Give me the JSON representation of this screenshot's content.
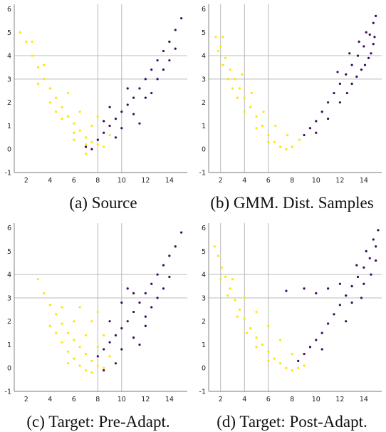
{
  "chart_data": [
    {
      "type": "scatter",
      "title": "(a) Source",
      "xlim": [
        1,
        15.5
      ],
      "ylim": [
        -1,
        6.2
      ],
      "xticks": [
        2,
        4,
        6,
        8,
        10,
        12,
        14
      ],
      "yticks": [
        -1,
        0,
        1,
        2,
        3,
        4,
        5,
        6
      ],
      "x_grid": [
        8,
        10
      ],
      "y_grid": [
        3,
        4
      ],
      "series": [
        {
          "class": "yellow",
          "color": "#FFE600",
          "points": [
            [
              1.5,
              5.0
            ],
            [
              2.0,
              4.6
            ],
            [
              2.5,
              4.0
            ],
            [
              3.0,
              3.5
            ],
            [
              3.5,
              3.0
            ],
            [
              4.0,
              2.6
            ],
            [
              4.5,
              2.2
            ],
            [
              5.0,
              1.8
            ],
            [
              5.5,
              1.4
            ],
            [
              6.0,
              1.1
            ],
            [
              6.5,
              0.8
            ],
            [
              7.0,
              0.5
            ],
            [
              7.5,
              0.3
            ],
            [
              8.0,
              0.2
            ],
            [
              8.5,
              0.1
            ],
            [
              3.0,
              2.8
            ],
            [
              4.0,
              2.0
            ],
            [
              5.0,
              1.3
            ],
            [
              6.0,
              0.7
            ],
            [
              7.0,
              0.2
            ],
            [
              5.5,
              2.4
            ],
            [
              6.5,
              1.6
            ],
            [
              7.5,
              1.0
            ],
            [
              8.0,
              1.4
            ],
            [
              9.0,
              0.6
            ],
            [
              3.5,
              3.6
            ],
            [
              2.5,
              4.6
            ],
            [
              4.5,
              1.6
            ],
            [
              6.0,
              0.4
            ],
            [
              7.0,
              -0.2
            ]
          ]
        },
        {
          "class": "purple",
          "color": "#3B0A5E",
          "points": [
            [
              7.0,
              0.1
            ],
            [
              7.5,
              0.0
            ],
            [
              8.0,
              0.4
            ],
            [
              8.5,
              0.7
            ],
            [
              9.0,
              1.0
            ],
            [
              9.5,
              1.3
            ],
            [
              10.0,
              1.6
            ],
            [
              10.5,
              1.9
            ],
            [
              11.0,
              2.2
            ],
            [
              11.5,
              2.6
            ],
            [
              12.0,
              3.0
            ],
            [
              12.5,
              3.4
            ],
            [
              13.0,
              3.8
            ],
            [
              13.5,
              4.2
            ],
            [
              14.0,
              4.6
            ],
            [
              14.5,
              5.1
            ],
            [
              15.0,
              5.6
            ],
            [
              10.0,
              0.9
            ],
            [
              11.0,
              1.5
            ],
            [
              12.0,
              2.2
            ],
            [
              13.0,
              3.0
            ],
            [
              14.0,
              3.8
            ],
            [
              9.0,
              1.8
            ],
            [
              10.5,
              2.6
            ],
            [
              12.5,
              2.4
            ],
            [
              13.5,
              3.4
            ],
            [
              14.5,
              4.3
            ],
            [
              8.5,
              1.2
            ],
            [
              9.5,
              0.5
            ],
            [
              11.5,
              1.1
            ]
          ]
        }
      ]
    },
    {
      "type": "scatter",
      "title": "(b) GMM. Dist. Samples",
      "xlim": [
        1,
        15.5
      ],
      "ylim": [
        -1,
        6.2
      ],
      "xticks": [
        2,
        4,
        6,
        8,
        10,
        12,
        14
      ],
      "yticks": [
        -1,
        0,
        1,
        2,
        3,
        4,
        5,
        6
      ],
      "x_grid": [
        2,
        4,
        6
      ],
      "y_grid": [
        3,
        4
      ],
      "series": [
        {
          "class": "yellow",
          "color": "#FFE600",
          "points": [
            [
              1.6,
              4.8
            ],
            [
              2.0,
              4.4
            ],
            [
              2.4,
              3.9
            ],
            [
              2.8,
              3.4
            ],
            [
              3.2,
              3.0
            ],
            [
              3.6,
              2.6
            ],
            [
              4.0,
              2.2
            ],
            [
              4.5,
              1.8
            ],
            [
              5.0,
              1.4
            ],
            [
              5.5,
              1.0
            ],
            [
              6.0,
              0.6
            ],
            [
              6.5,
              0.3
            ],
            [
              7.0,
              0.1
            ],
            [
              7.5,
              0.0
            ],
            [
              8.0,
              0.1
            ],
            [
              2.2,
              3.6
            ],
            [
              3.0,
              2.6
            ],
            [
              4.0,
              1.6
            ],
            [
              5.0,
              0.9
            ],
            [
              6.0,
              0.3
            ],
            [
              1.8,
              4.2
            ],
            [
              2.6,
              3.0
            ],
            [
              3.4,
              2.2
            ],
            [
              4.6,
              2.4
            ],
            [
              5.6,
              1.6
            ],
            [
              6.6,
              1.0
            ],
            [
              7.6,
              0.6
            ],
            [
              8.6,
              0.4
            ],
            [
              3.8,
              3.2
            ],
            [
              2.2,
              4.8
            ]
          ]
        },
        {
          "class": "purple",
          "color": "#3B0A5E",
          "points": [
            [
              9.0,
              0.6
            ],
            [
              9.5,
              0.9
            ],
            [
              10.0,
              1.2
            ],
            [
              10.5,
              1.6
            ],
            [
              11.0,
              2.0
            ],
            [
              11.5,
              2.4
            ],
            [
              12.0,
              2.8
            ],
            [
              12.5,
              3.2
            ],
            [
              13.0,
              3.6
            ],
            [
              13.5,
              4.0
            ],
            [
              14.0,
              4.4
            ],
            [
              14.5,
              4.9
            ],
            [
              14.8,
              5.4
            ],
            [
              15.0,
              5.7
            ],
            [
              13.0,
              2.8
            ],
            [
              13.8,
              3.4
            ],
            [
              14.4,
              3.9
            ],
            [
              14.8,
              4.5
            ],
            [
              12.0,
              2.0
            ],
            [
              11.0,
              1.3
            ],
            [
              10.0,
              0.7
            ],
            [
              12.6,
              2.4
            ],
            [
              13.4,
              3.1
            ],
            [
              14.1,
              3.6
            ],
            [
              14.6,
              4.1
            ],
            [
              14.9,
              4.8
            ],
            [
              14.2,
              5.0
            ],
            [
              13.6,
              4.6
            ],
            [
              12.8,
              4.1
            ],
            [
              11.8,
              3.3
            ]
          ]
        }
      ]
    },
    {
      "type": "scatter",
      "title": "(c) Target: Pre-Adapt.",
      "xlim": [
        1,
        15.5
      ],
      "ylim": [
        -1,
        6.2
      ],
      "xticks": [
        2,
        4,
        6,
        8,
        10,
        12,
        14
      ],
      "yticks": [
        -1,
        0,
        1,
        2,
        3,
        4,
        5,
        6
      ],
      "x_grid": [
        8,
        10
      ],
      "y_grid": [
        3,
        4
      ],
      "series": [
        {
          "class": "yellow",
          "color": "#FFE600",
          "points": [
            [
              3.0,
              3.8
            ],
            [
              3.5,
              3.2
            ],
            [
              4.0,
              2.7
            ],
            [
              4.5,
              2.3
            ],
            [
              5.0,
              1.9
            ],
            [
              5.5,
              1.5
            ],
            [
              6.0,
              1.2
            ],
            [
              6.5,
              0.9
            ],
            [
              7.0,
              0.6
            ],
            [
              7.5,
              0.3
            ],
            [
              8.0,
              0.1
            ],
            [
              8.5,
              0.0
            ],
            [
              4.5,
              1.5
            ],
            [
              5.0,
              1.1
            ],
            [
              5.5,
              0.7
            ],
            [
              6.0,
              0.4
            ],
            [
              6.5,
              0.1
            ],
            [
              7.0,
              -0.1
            ],
            [
              5.0,
              2.6
            ],
            [
              6.0,
              2.0
            ],
            [
              7.0,
              1.4
            ],
            [
              8.0,
              0.9
            ],
            [
              9.0,
              0.5
            ],
            [
              6.5,
              2.6
            ],
            [
              7.5,
              2.0
            ],
            [
              8.5,
              1.4
            ],
            [
              5.5,
              0.2
            ],
            [
              7.5,
              -0.2
            ],
            [
              8.0,
              2.4
            ],
            [
              4.0,
              1.8
            ]
          ]
        },
        {
          "class": "purple",
          "color": "#3B0A5E",
          "points": [
            [
              8.0,
              0.5
            ],
            [
              8.5,
              0.8
            ],
            [
              9.0,
              1.1
            ],
            [
              9.5,
              1.4
            ],
            [
              10.0,
              1.7
            ],
            [
              10.5,
              2.0
            ],
            [
              11.0,
              2.4
            ],
            [
              11.5,
              2.8
            ],
            [
              12.0,
              3.2
            ],
            [
              12.5,
              3.6
            ],
            [
              13.0,
              4.0
            ],
            [
              13.5,
              4.4
            ],
            [
              14.0,
              4.8
            ],
            [
              14.5,
              5.2
            ],
            [
              15.0,
              5.8
            ],
            [
              9.0,
              2.0
            ],
            [
              10.0,
              2.8
            ],
            [
              11.0,
              3.2
            ],
            [
              12.0,
              2.2
            ],
            [
              13.0,
              3.0
            ],
            [
              10.0,
              0.8
            ],
            [
              11.0,
              1.3
            ],
            [
              12.0,
              1.8
            ],
            [
              9.5,
              0.2
            ],
            [
              8.5,
              -0.1
            ],
            [
              11.5,
              1.0
            ],
            [
              12.5,
              2.6
            ],
            [
              13.5,
              3.4
            ],
            [
              14.0,
              3.9
            ],
            [
              10.5,
              3.4
            ]
          ]
        }
      ]
    },
    {
      "type": "scatter",
      "title": "(d) Target: Post-Adapt.",
      "xlim": [
        1,
        15.5
      ],
      "ylim": [
        -1,
        6.2
      ],
      "xticks": [
        2,
        4,
        6,
        8,
        10,
        12,
        14
      ],
      "yticks": [
        -1,
        0,
        1,
        2,
        3,
        4,
        5,
        6
      ],
      "x_grid": [
        2,
        4,
        6
      ],
      "y_grid": [
        3,
        4
      ],
      "series": [
        {
          "class": "yellow",
          "color": "#FFE600",
          "points": [
            [
              1.5,
              5.2
            ],
            [
              1.8,
              4.8
            ],
            [
              2.1,
              4.3
            ],
            [
              2.4,
              3.9
            ],
            [
              2.8,
              3.4
            ],
            [
              3.2,
              2.9
            ],
            [
              3.6,
              2.5
            ],
            [
              4.0,
              2.1
            ],
            [
              4.5,
              1.7
            ],
            [
              5.0,
              1.3
            ],
            [
              5.5,
              1.0
            ],
            [
              6.0,
              0.7
            ],
            [
              6.5,
              0.4
            ],
            [
              7.0,
              0.2
            ],
            [
              7.5,
              0.0
            ],
            [
              8.0,
              -0.1
            ],
            [
              8.5,
              0.0
            ],
            [
              9.0,
              0.1
            ],
            [
              2.0,
              3.8
            ],
            [
              2.6,
              3.1
            ],
            [
              3.4,
              2.2
            ],
            [
              4.2,
              1.5
            ],
            [
              5.0,
              0.9
            ],
            [
              6.0,
              0.3
            ],
            [
              3.0,
              3.8
            ],
            [
              4.0,
              3.0
            ],
            [
              5.0,
              2.4
            ],
            [
              6.0,
              1.8
            ],
            [
              7.0,
              1.2
            ],
            [
              8.0,
              0.6
            ]
          ]
        },
        {
          "class": "purple",
          "color": "#3B0A5E",
          "points": [
            [
              8.5,
              0.3
            ],
            [
              9.0,
              0.6
            ],
            [
              9.5,
              0.9
            ],
            [
              10.0,
              1.2
            ],
            [
              10.5,
              1.5
            ],
            [
              11.0,
              1.9
            ],
            [
              11.5,
              2.3
            ],
            [
              12.0,
              2.7
            ],
            [
              12.5,
              3.1
            ],
            [
              13.0,
              3.5
            ],
            [
              13.5,
              3.9
            ],
            [
              14.0,
              4.3
            ],
            [
              14.5,
              4.7
            ],
            [
              15.0,
              5.2
            ],
            [
              15.2,
              5.9
            ],
            [
              11.0,
              3.4
            ],
            [
              12.0,
              3.6
            ],
            [
              13.0,
              2.8
            ],
            [
              14.0,
              3.6
            ],
            [
              14.6,
              4.0
            ],
            [
              15.0,
              4.6
            ],
            [
              14.2,
              5.0
            ],
            [
              13.4,
              4.4
            ],
            [
              10.0,
              3.2
            ],
            [
              9.0,
              3.4
            ],
            [
              7.5,
              3.3
            ],
            [
              10.5,
              0.8
            ],
            [
              12.5,
              2.0
            ],
            [
              13.8,
              3.0
            ],
            [
              14.8,
              5.5
            ]
          ]
        }
      ]
    }
  ]
}
